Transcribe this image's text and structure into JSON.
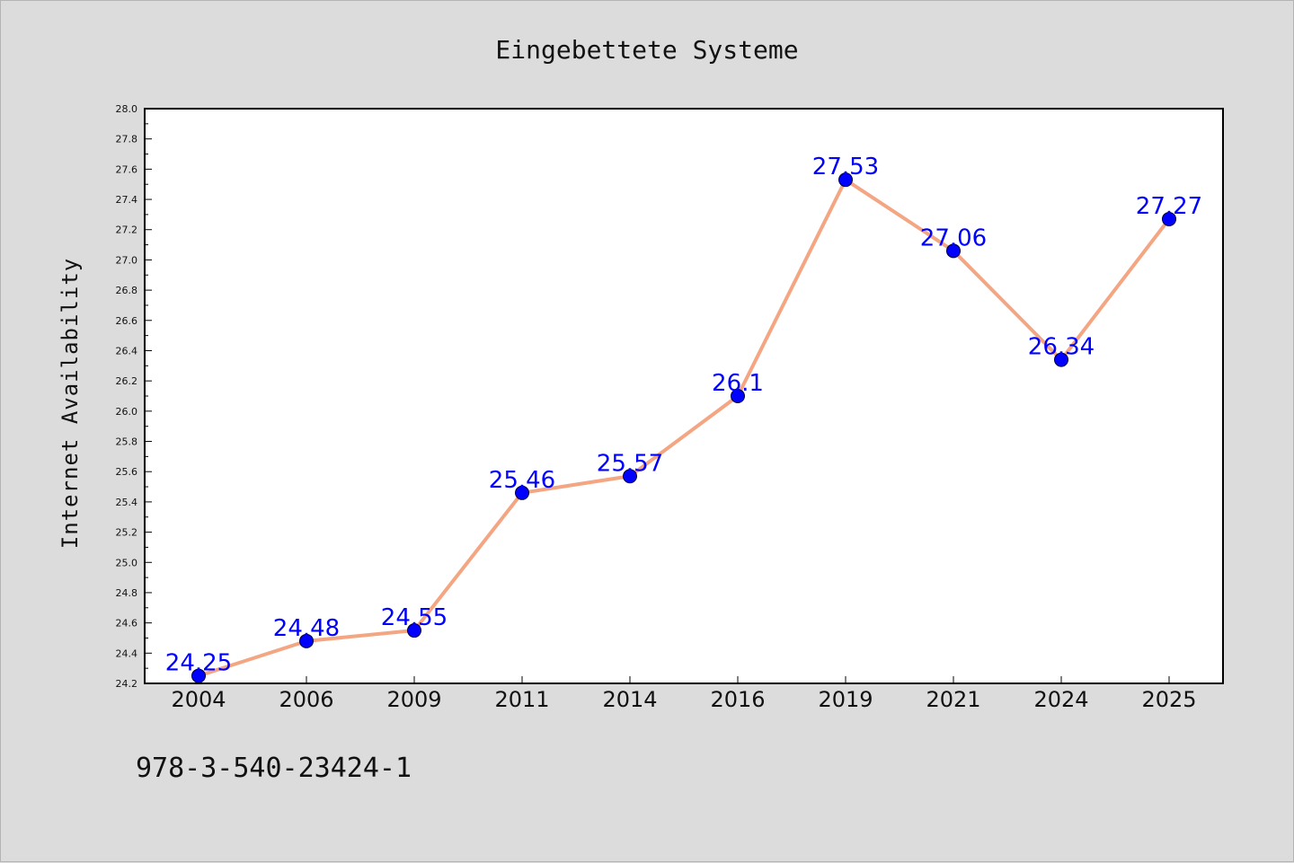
{
  "chart_data": {
    "type": "line",
    "title": "Eingebettete Systeme",
    "xlabel": "",
    "ylabel": "Internet Availability",
    "categories": [
      "2004",
      "2006",
      "2009",
      "2011",
      "2014",
      "2016",
      "2019",
      "2021",
      "2024",
      "2025"
    ],
    "series": [
      {
        "values": [
          24.25,
          24.48,
          24.55,
          25.46,
          25.57,
          26.1,
          27.53,
          27.06,
          26.34,
          27.27
        ],
        "labels": [
          "24.25",
          "24.48",
          "24.55",
          "25.46",
          "25.57",
          "26.1",
          "27.53",
          "27.06",
          "26.34",
          "27.27"
        ],
        "line_color": "#f4a582",
        "marker_color": "#0000ff",
        "label_color": "#0000ff"
      }
    ],
    "ylim": [
      24.2,
      28.0
    ],
    "yticks": [
      "24.2",
      "24.4",
      "24.6",
      "24.8",
      "25.0",
      "25.2",
      "25.4",
      "25.6",
      "25.8",
      "26.0",
      "26.2",
      "26.4",
      "26.6",
      "26.8",
      "27.0",
      "27.2",
      "27.4",
      "27.6",
      "27.8",
      "28.0"
    ],
    "grid": false,
    "legend": "none"
  },
  "footnote": "978-3-540-23424-1",
  "colors": {
    "background": "#dcdcdc",
    "plot_area": "#ffffff",
    "axis": "#000000"
  }
}
